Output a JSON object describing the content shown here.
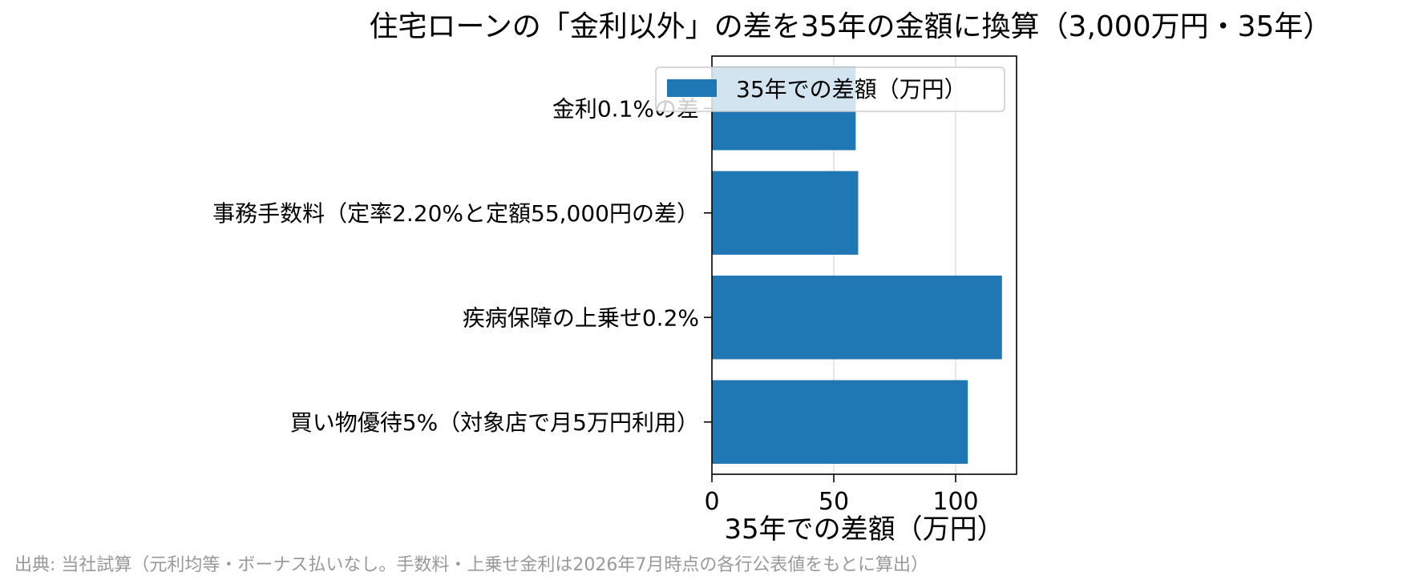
{
  "chart_data": {
    "type": "bar",
    "orientation": "horizontal",
    "title": "住宅ローンの「金利以外」の差を35年の金額に換算（3,000万円・35年）",
    "xlabel": "35年での差額（万円）",
    "ylabel": "",
    "categories": [
      "金利0.1%の差",
      "事務手数料（定率2.20%と定額55,000円の差）",
      "疾病保障の上乗せ0.2%",
      "買い物優待5%（対象店で月5万円利用）"
    ],
    "series": [
      {
        "name": "35年での差額（万円）",
        "color": "#1f77b4",
        "values": [
          59,
          60,
          119,
          105
        ]
      }
    ],
    "xlim": [
      0,
      125
    ],
    "xticks": [
      0,
      50,
      100
    ],
    "grid": "vertical",
    "legend": "top-right",
    "source_note": "出典: 当社試算（元利均等・ボーナス払いなし。手数料・上乗せ金利は2026年7月時点の各行公表値をもとに算出）"
  }
}
